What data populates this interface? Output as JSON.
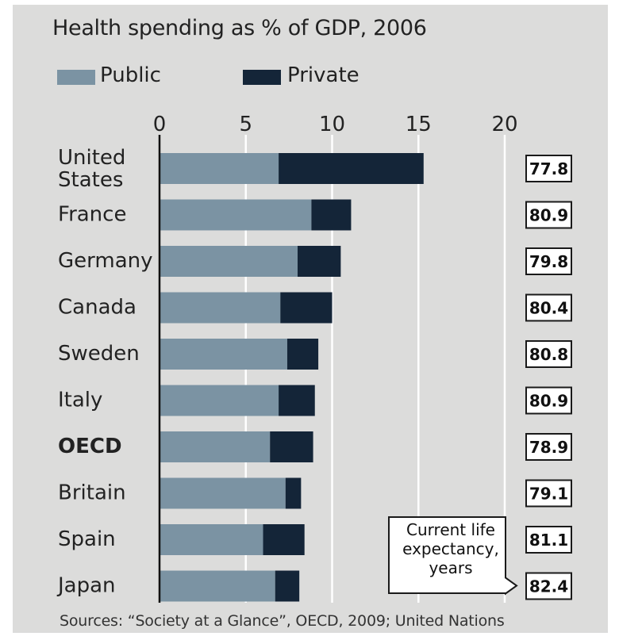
{
  "chart_data": {
    "type": "bar",
    "stacked": true,
    "orientation": "horizontal",
    "title": "Health spending as % of GDP, 2006",
    "categories": [
      "United States",
      "France",
      "Germany",
      "Canada",
      "Sweden",
      "Italy",
      "OECD",
      "Britain",
      "Spain",
      "Japan"
    ],
    "series": [
      {
        "name": "Public",
        "color": "#7b93a3",
        "values": [
          6.9,
          8.8,
          8.0,
          7.0,
          7.4,
          6.9,
          6.4,
          7.3,
          6.0,
          6.7
        ]
      },
      {
        "name": "Private",
        "color": "#142538",
        "values": [
          8.4,
          2.3,
          2.5,
          3.0,
          1.8,
          2.1,
          2.5,
          0.9,
          2.4,
          1.4
        ]
      }
    ],
    "xlim": [
      0,
      20
    ],
    "xticks": [
      0,
      5,
      10,
      15,
      20
    ],
    "grid": true,
    "legend_position": "top-left",
    "side_values": {
      "label": "Current life expectancy, years",
      "values": [
        "77.8",
        "80.9",
        "79.8",
        "80.4",
        "80.8",
        "80.9",
        "78.9",
        "79.1",
        "81.1",
        "82.4"
      ]
    },
    "highlight_category": "OECD",
    "source": "Sources: “Society at a Glance”, OECD, 2009; United Nations"
  }
}
